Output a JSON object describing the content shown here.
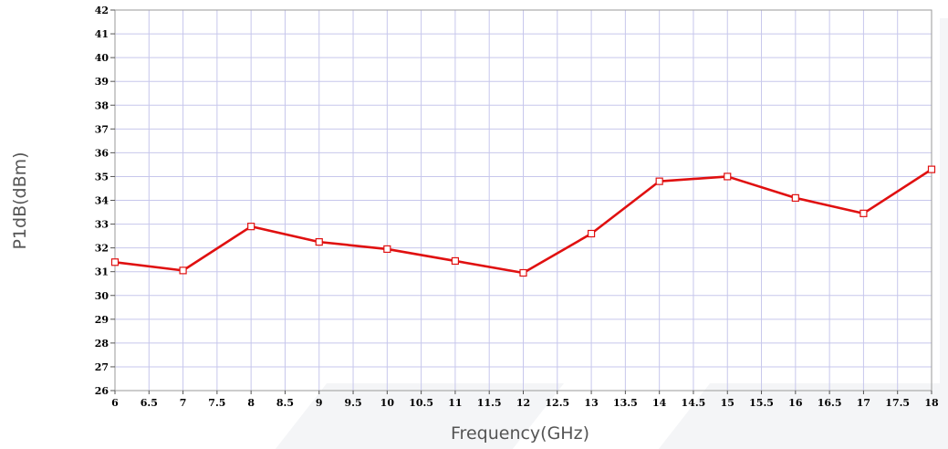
{
  "chart_data": {
    "type": "line",
    "title": "",
    "xlabel": "Frequency(GHz)",
    "ylabel": "P1dB(dBm)",
    "xlim": [
      6,
      18
    ],
    "ylim": [
      26,
      42
    ],
    "grid": true,
    "x_ticks": [
      "6",
      "6.5",
      "7",
      "7.5",
      "8",
      "8.5",
      "9",
      "9.5",
      "10",
      "10.5",
      "11",
      "11.5",
      "12",
      "12.5",
      "13",
      "13.5",
      "14",
      "14.5",
      "15",
      "15.5",
      "16",
      "16.5",
      "17",
      "17.5",
      "18"
    ],
    "y_ticks": [
      "26",
      "27",
      "28",
      "29",
      "30",
      "31",
      "32",
      "33",
      "34",
      "35",
      "36",
      "37",
      "38",
      "39",
      "40",
      "41",
      "42"
    ],
    "series": [
      {
        "color": "#e01010",
        "marker": "square",
        "x": [
          6,
          7,
          8,
          9,
          10,
          11,
          12,
          13,
          14,
          15,
          16,
          17,
          18
        ],
        "y": [
          31.4,
          31.05,
          32.9,
          32.25,
          31.95,
          31.45,
          30.95,
          32.6,
          34.8,
          35.0,
          34.1,
          33.45,
          35.3
        ]
      }
    ]
  }
}
